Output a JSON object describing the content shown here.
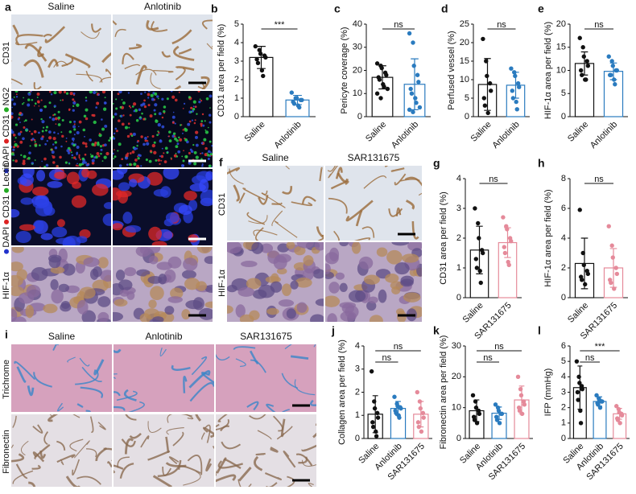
{
  "figure": {
    "a": {
      "letter": "a",
      "columns": [
        "Saline",
        "Anlotinib"
      ],
      "rows": [
        [
          {
            "text": "CD31"
          }
        ],
        [
          {
            "text": "DAPI",
            "color": "#2233cc"
          },
          {
            "text": "CD31",
            "color": "#dd2222"
          },
          {
            "text": "NG2",
            "color": "#22aa22"
          }
        ],
        [
          {
            "text": "DAPI",
            "color": "#2233cc"
          },
          {
            "text": "CD31",
            "color": "#dd2222"
          },
          {
            "text": "Lectin",
            "color": "#22aa22"
          }
        ],
        [
          {
            "text": "HIF-1α"
          }
        ]
      ]
    },
    "f": {
      "letter": "f",
      "columns": [
        "Saline",
        "SAR131675"
      ],
      "rows": [
        [
          {
            "text": "CD31"
          }
        ],
        [
          {
            "text": "HIF-1α"
          }
        ]
      ]
    },
    "i": {
      "letter": "i",
      "columns": [
        "Saline",
        "Anlotinib",
        "SAR131675"
      ],
      "rows": [
        [
          {
            "text": "Trichrome"
          }
        ],
        [
          {
            "text": "Fibronectin"
          }
        ]
      ]
    }
  },
  "chart_data": [
    {
      "type": "bar",
      "panel": "b",
      "ylabel": "CD31 area per field (%)",
      "categories": [
        "Saline",
        "Anlotinib"
      ],
      "colors": [
        "#111111",
        "#2a7bbf"
      ],
      "values": [
        3.2,
        0.9
      ],
      "errors": [
        0.6,
        0.25
      ],
      "points": [
        [
          3.8,
          3.6,
          3.4,
          3.3,
          3.2,
          3.1,
          2.9,
          2.5,
          2.2
        ],
        [
          1.3,
          1.0,
          1.0,
          0.9,
          0.9,
          0.8,
          0.7,
          0.6,
          0.5
        ]
      ],
      "ylim": [
        0,
        5
      ],
      "yticks": [
        0,
        1,
        2,
        3,
        4,
        5
      ],
      "comparisons": [
        {
          "from": "Saline",
          "to": "Anlotinib",
          "label": "***"
        }
      ]
    },
    {
      "type": "bar",
      "panel": "c",
      "ylabel": "Pericyte coverage (%)",
      "categories": [
        "Saline",
        "Anlotinib"
      ],
      "colors": [
        "#111111",
        "#2a7bbf"
      ],
      "values": [
        17,
        14
      ],
      "errors": [
        5,
        11
      ],
      "points": [
        [
          23,
          22,
          21,
          19,
          18,
          17,
          16,
          14,
          13,
          12,
          10,
          8
        ],
        [
          36,
          32,
          22,
          18,
          15,
          12,
          10,
          8,
          6,
          4,
          3,
          2
        ]
      ],
      "ylim": [
        0,
        40
      ],
      "yticks": [
        0,
        10,
        20,
        30,
        40
      ],
      "comparisons": [
        {
          "from": "Saline",
          "to": "Anlotinib",
          "label": "ns"
        }
      ]
    },
    {
      "type": "bar",
      "panel": "d",
      "ylabel": "Perfused vessel (%)",
      "categories": [
        "Saline",
        "Anlotinib"
      ],
      "colors": [
        "#111111",
        "#2a7bbf"
      ],
      "values": [
        8.7,
        8.5
      ],
      "errors": [
        7,
        3.5
      ],
      "points": [
        [
          21,
          15,
          11,
          9,
          7,
          5,
          3,
          1
        ],
        [
          13,
          12,
          11,
          9,
          8,
          7,
          5,
          4,
          2
        ]
      ],
      "ylim": [
        0,
        25
      ],
      "yticks": [
        0,
        5,
        10,
        15,
        20,
        25
      ],
      "comparisons": [
        {
          "from": "Saline",
          "to": "Anlotinib",
          "label": "ns"
        }
      ]
    },
    {
      "type": "bar",
      "panel": "e",
      "ylabel": "HIF-1α area per field (%)",
      "categories": [
        "Saline",
        "Anlotinib"
      ],
      "colors": [
        "#111111",
        "#2a7bbf"
      ],
      "values": [
        11.5,
        9.8
      ],
      "errors": [
        2.5,
        1.8
      ],
      "points": [
        [
          17,
          15,
          13,
          12,
          11,
          10,
          9,
          8,
          8
        ],
        [
          13,
          12,
          11,
          10,
          10,
          9,
          9,
          8,
          7
        ]
      ],
      "ylim": [
        0,
        20
      ],
      "yticks": [
        0,
        5,
        10,
        15,
        20
      ],
      "comparisons": [
        {
          "from": "Saline",
          "to": "Anlotinib",
          "label": "ns"
        }
      ]
    },
    {
      "type": "bar",
      "panel": "g",
      "ylabel": "CD31 area per field (%)",
      "categories": [
        "Saline",
        "SAR131675"
      ],
      "colors": [
        "#111111",
        "#e58a9a"
      ],
      "values": [
        1.6,
        1.85
      ],
      "errors": [
        0.8,
        0.5
      ],
      "points": [
        [
          3.0,
          2.5,
          2.0,
          1.6,
          1.5,
          1.3,
          1.0,
          0.9,
          0.5
        ],
        [
          2.7,
          2.4,
          2.3,
          2.0,
          1.9,
          1.7,
          1.5,
          1.2,
          1.1
        ]
      ],
      "ylim": [
        0,
        4
      ],
      "yticks": [
        0,
        1,
        2,
        3,
        4
      ],
      "comparisons": [
        {
          "from": "Saline",
          "to": "SAR131675",
          "label": "ns"
        }
      ]
    },
    {
      "type": "bar",
      "panel": "h",
      "ylabel": "HIF-1α area per field (%)",
      "categories": [
        "Saline",
        "SAR131675"
      ],
      "colors": [
        "#111111",
        "#e58a9a"
      ],
      "values": [
        2.3,
        2.0
      ],
      "errors": [
        1.7,
        1.3
      ],
      "points": [
        [
          5.9,
          3.0,
          2.2,
          1.8,
          1.6,
          1.4,
          1.2,
          0.9
        ],
        [
          4.8,
          3.5,
          2.7,
          2.0,
          1.6,
          1.2,
          1.0,
          0.6
        ]
      ],
      "ylim": [
        0,
        8
      ],
      "yticks": [
        0,
        2,
        4,
        6,
        8
      ],
      "comparisons": [
        {
          "from": "Saline",
          "to": "SAR131675",
          "label": "ns"
        }
      ]
    },
    {
      "type": "bar",
      "panel": "j",
      "ylabel": "Collagen area per field (%)",
      "categories": [
        "Saline",
        "Anlotinib",
        "SAR131675"
      ],
      "colors": [
        "#111111",
        "#2a7bbf",
        "#e58a9a"
      ],
      "values": [
        1.05,
        1.3,
        1.05
      ],
      "errors": [
        0.8,
        0.3,
        0.55
      ],
      "points": [
        [
          2.9,
          1.6,
          1.3,
          1.1,
          0.9,
          0.7,
          0.5,
          0.3,
          0.1
        ],
        [
          1.8,
          1.5,
          1.4,
          1.35,
          1.3,
          1.2,
          1.1,
          1.0,
          0.9
        ],
        [
          2.0,
          1.6,
          1.3,
          1.1,
          0.9,
          0.7,
          0.5,
          0.3
        ]
      ],
      "ylim": [
        0,
        4
      ],
      "yticks": [
        0,
        1,
        2,
        3,
        4
      ],
      "comparisons": [
        {
          "from": "Saline",
          "to": "Anlotinib",
          "label": "ns"
        },
        {
          "from": "Saline",
          "to": "SAR131675",
          "label": "ns"
        }
      ]
    },
    {
      "type": "bar",
      "panel": "k",
      "ylabel": "Fibronectin area per field (%)",
      "categories": [
        "Saline",
        "Anlotinib",
        "SAR131675"
      ],
      "colors": [
        "#111111",
        "#2a7bbf",
        "#e58a9a"
      ],
      "values": [
        9,
        8.2,
        12.5
      ],
      "errors": [
        3.5,
        2,
        4.5
      ],
      "points": [
        [
          14,
          12,
          10,
          9,
          8,
          7,
          6,
          5
        ],
        [
          11,
          10,
          9,
          8,
          8,
          7,
          6,
          5
        ],
        [
          20,
          16,
          14,
          12,
          11,
          10,
          9,
          8
        ]
      ],
      "ylim": [
        0,
        30
      ],
      "yticks": [
        0,
        10,
        20,
        30
      ],
      "comparisons": [
        {
          "from": "Saline",
          "to": "Anlotinib",
          "label": "ns"
        },
        {
          "from": "Saline",
          "to": "SAR131675",
          "label": "ns"
        }
      ]
    },
    {
      "type": "bar",
      "panel": "l",
      "ylabel": "IFP (mmHg)",
      "categories": [
        "Saline",
        "Anlotinib",
        "SAR131675"
      ],
      "colors": [
        "#111111",
        "#2a7bbf",
        "#e58a9a"
      ],
      "values": [
        3.3,
        2.4,
        1.6
      ],
      "errors": [
        1.4,
        0.3,
        0.35
      ],
      "points": [
        [
          5.0,
          4.0,
          3.6,
          3.4,
          3.2,
          3.0,
          2.5,
          1.8,
          1.0
        ],
        [
          2.8,
          2.6,
          2.5,
          2.4,
          2.4,
          2.3,
          2.2,
          2.0
        ],
        [
          2.1,
          1.9,
          1.7,
          1.6,
          1.5,
          1.3,
          1.2,
          1.0
        ]
      ],
      "ylim": [
        0,
        6
      ],
      "yticks": [
        0,
        1,
        2,
        3,
        4,
        5,
        6
      ],
      "comparisons": [
        {
          "from": "Saline",
          "to": "Anlotinib",
          "label": "ns"
        },
        {
          "from": "Saline",
          "to": "SAR131675",
          "label": "***"
        }
      ]
    }
  ]
}
